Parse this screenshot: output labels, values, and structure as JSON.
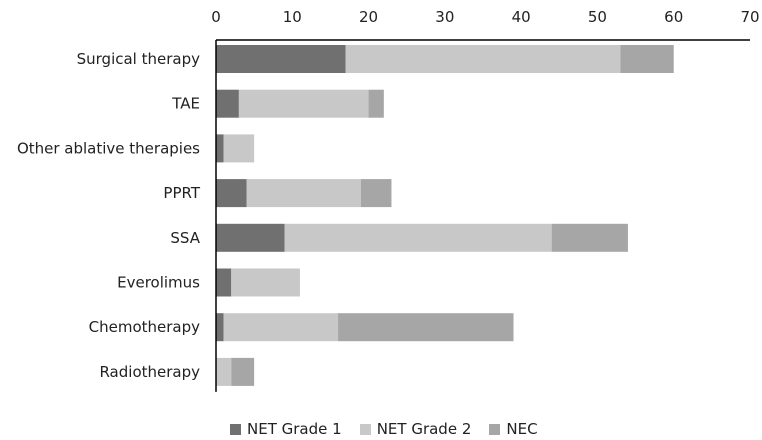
{
  "chart_data": {
    "type": "bar",
    "orientation": "horizontal",
    "stacked": true,
    "categories": [
      "Surgical therapy",
      "TAE",
      "Other ablative therapies",
      "PPRT",
      "SSA",
      "Everolimus",
      "Chemotherapy",
      "Radiotherapy"
    ],
    "series": [
      {
        "name": "NET Grade 1",
        "color": "#707070",
        "values": [
          17,
          3,
          1,
          4,
          9,
          2,
          1,
          0
        ]
      },
      {
        "name": "NET Grade 2",
        "color": "#c8c8c8",
        "values": [
          36,
          17,
          4,
          15,
          35,
          9,
          15,
          2
        ]
      },
      {
        "name": "NEC",
        "color": "#a6a6a6",
        "values": [
          7,
          2,
          0,
          4,
          10,
          0,
          23,
          3
        ]
      }
    ],
    "xlim": [
      0,
      70
    ],
    "xticks": [
      "0",
      "10",
      "20",
      "30",
      "40",
      "50",
      "60",
      "70"
    ],
    "x_axis_position": "top",
    "grid": false,
    "legend_position": "bottom",
    "title": "",
    "xlabel": "",
    "ylabel": ""
  }
}
